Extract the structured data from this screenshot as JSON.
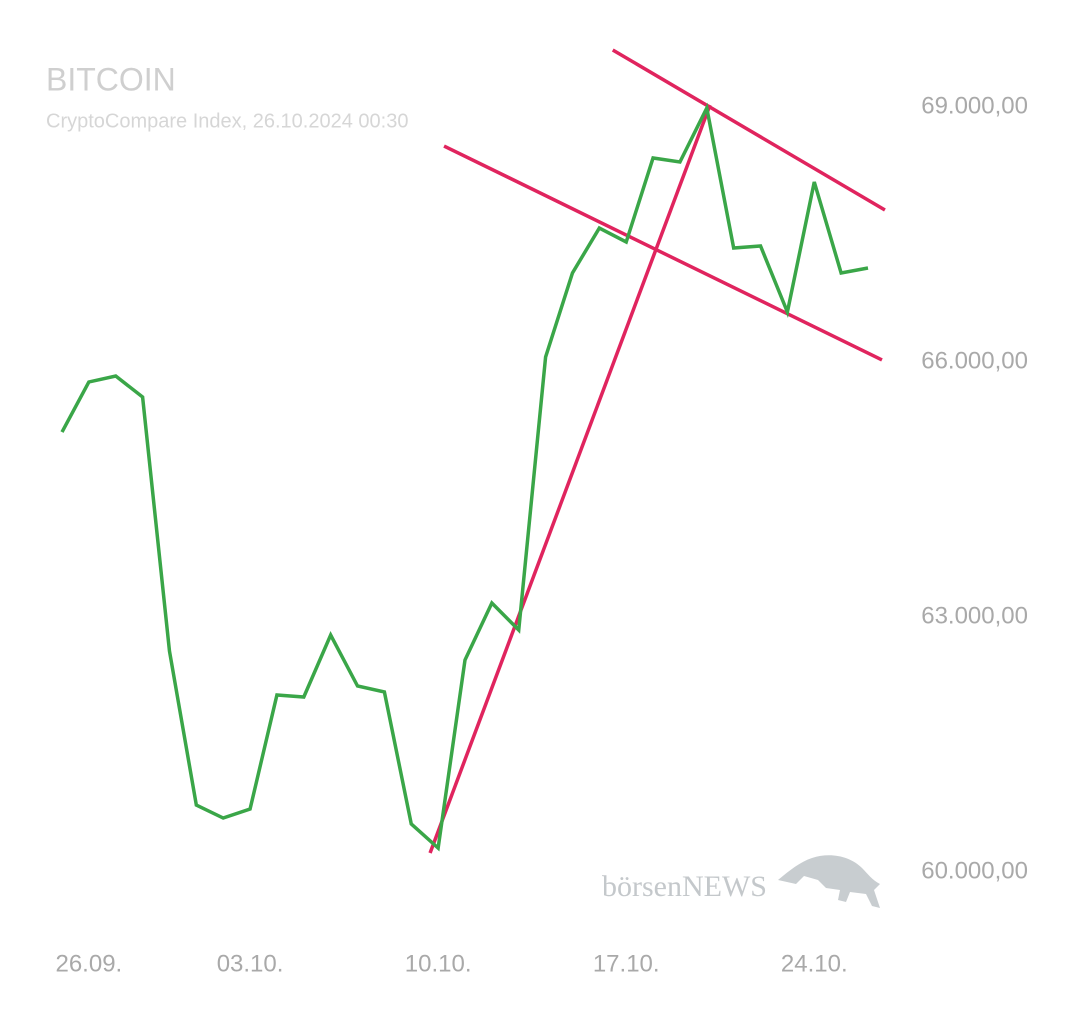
{
  "chart_data": {
    "type": "line",
    "title": "BITCOIN",
    "subtitle": "CryptoCompare Index, 26.10.2024 00:30",
    "watermark": "börsenNEWS",
    "categories": [
      null,
      "26.09.",
      null,
      null,
      null,
      null,
      null,
      "03.10.",
      null,
      null,
      null,
      null,
      null,
      null,
      "10.10.",
      null,
      null,
      null,
      null,
      null,
      null,
      "17.10.",
      null,
      null,
      null,
      null,
      null,
      null,
      "24.10.",
      null,
      null
    ],
    "series": [
      {
        "name": "Bitcoin",
        "color": "#3aa648",
        "values": [
          65176,
          65765,
          65835,
          65588,
          62600,
          60788,
          60635,
          60741,
          62082,
          62059,
          62788,
          62188,
          62118,
          60565,
          60282,
          62494,
          63165,
          62847,
          66059,
          67047,
          67576,
          67412,
          68400,
          68353,
          68988,
          67341,
          67365,
          66588,
          68118,
          67047,
          67106
        ]
      }
    ],
    "trendlines": [
      {
        "color": "#e0245e",
        "x": [
          20.5,
          30.63
        ],
        "values": [
          69671,
          67788
        ]
      },
      {
        "color": "#e0245e",
        "x": [
          14.22,
          30.52
        ],
        "values": [
          68541,
          66024
        ]
      },
      {
        "color": "#e0245e",
        "x": [
          13.7,
          24.12
        ],
        "values": [
          60224,
          69024
        ]
      }
    ],
    "ylim": [
      59700,
      69800
    ],
    "yticks": [
      {
        "value": 60000,
        "label": "60.000,00"
      },
      {
        "value": 63000,
        "label": "63.000,00"
      },
      {
        "value": 66000,
        "label": "66.000,00"
      },
      {
        "value": 69000,
        "label": "69.000,00"
      }
    ],
    "grid": false
  }
}
